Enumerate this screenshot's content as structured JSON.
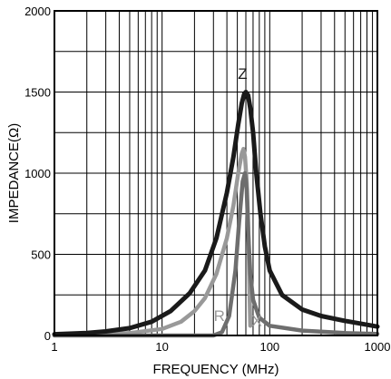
{
  "chart_data": {
    "type": "line",
    "title": "",
    "xlabel": "FREQUENCY (MHz)",
    "ylabel": "IMPEDANCE(Ω)",
    "xscale": "log",
    "xlim": [
      1,
      1000
    ],
    "ylim": [
      0,
      2000
    ],
    "x_ticks": [
      {
        "value": 1,
        "label": "1"
      },
      {
        "value": 10,
        "label": "10"
      },
      {
        "value": 100,
        "label": "100"
      },
      {
        "value": 1000,
        "label": "1000"
      }
    ],
    "y_ticks": [
      {
        "value": 0,
        "label": "0"
      },
      {
        "value": 500,
        "label": "500"
      },
      {
        "value": 1000,
        "label": "1000"
      },
      {
        "value": 1500,
        "label": "1500"
      },
      {
        "value": 2000,
        "label": "2000"
      }
    ],
    "grid": true,
    "series": [
      {
        "name": "Z",
        "color": "#1a1a1a",
        "points": [
          [
            1,
            8
          ],
          [
            2,
            15
          ],
          [
            3,
            25
          ],
          [
            5,
            45
          ],
          [
            8,
            85
          ],
          [
            12,
            150
          ],
          [
            18,
            260
          ],
          [
            25,
            400
          ],
          [
            32,
            600
          ],
          [
            40,
            880
          ],
          [
            46,
            1100
          ],
          [
            51,
            1300
          ],
          [
            55,
            1430
          ],
          [
            58,
            1490
          ],
          [
            60,
            1500
          ],
          [
            63,
            1480
          ],
          [
            66,
            1400
          ],
          [
            70,
            1250
          ],
          [
            75,
            1000
          ],
          [
            82,
            750
          ],
          [
            90,
            550
          ],
          [
            100,
            400
          ],
          [
            130,
            250
          ],
          [
            200,
            160
          ],
          [
            300,
            120
          ],
          [
            500,
            90
          ],
          [
            1000,
            55
          ]
        ]
      },
      {
        "name": "R",
        "color": "#999999",
        "points": [
          [
            1,
            3
          ],
          [
            3,
            8
          ],
          [
            5,
            15
          ],
          [
            10,
            40
          ],
          [
            15,
            85
          ],
          [
            20,
            150
          ],
          [
            25,
            230
          ],
          [
            32,
            380
          ],
          [
            40,
            600
          ],
          [
            46,
            800
          ],
          [
            51,
            1000
          ],
          [
            55,
            1120
          ],
          [
            57,
            1150
          ],
          [
            59,
            1100
          ],
          [
            61,
            950
          ],
          [
            63,
            700
          ],
          [
            64,
            500
          ],
          [
            65,
            250
          ],
          [
            66,
            60
          ]
        ]
      },
      {
        "name": "X",
        "color": "#6e6e6e",
        "points": [
          [
            1,
            0
          ],
          [
            30,
            0
          ],
          [
            36,
            20
          ],
          [
            42,
            120
          ],
          [
            48,
            400
          ],
          [
            52,
            700
          ],
          [
            56,
            950
          ],
          [
            59,
            1000
          ],
          [
            61,
            900
          ],
          [
            63,
            650
          ],
          [
            66,
            380
          ],
          [
            70,
            220
          ],
          [
            80,
            110
          ],
          [
            100,
            60
          ],
          [
            200,
            30
          ],
          [
            500,
            15
          ],
          [
            1000,
            10
          ]
        ]
      }
    ],
    "annotations": [
      {
        "text": "Z",
        "x": 56,
        "y": 1580,
        "color": "#1a1a1a"
      },
      {
        "text": "R",
        "x": 34,
        "y": 90,
        "color": "#999999"
      },
      {
        "text": "X",
        "x": 76,
        "y": 60,
        "color": "#999999"
      }
    ]
  }
}
